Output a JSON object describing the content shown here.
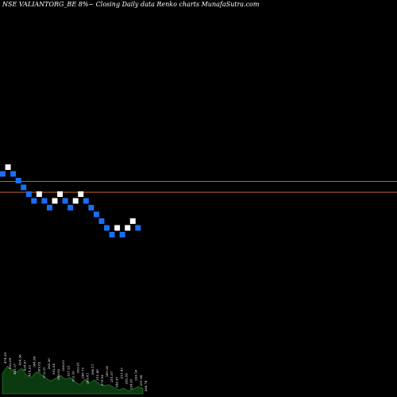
{
  "title": "NSE VALIANTORG_BE 8%~  Closing Daily data  Renko  charts MunafaSutra.com",
  "colors": {
    "background": "#000000",
    "brick_up": "#ffffff",
    "brick_down": "#1a6ef5",
    "hline": "#c0622a",
    "volume_fill": "#0c3a10",
    "volume_stroke": "#1f7a22",
    "label_text": "#ffffff"
  },
  "chart_data": {
    "type": "renko",
    "box_size_note": "8%",
    "bricks": [
      {
        "level": 0,
        "dir": "down"
      },
      {
        "level": 1,
        "dir": "up"
      },
      {
        "level": 0,
        "dir": "down"
      },
      {
        "level": -1,
        "dir": "down"
      },
      {
        "level": -2,
        "dir": "down"
      },
      {
        "level": -3,
        "dir": "down"
      },
      {
        "level": -4,
        "dir": "down"
      },
      {
        "level": -3,
        "dir": "up"
      },
      {
        "level": -4,
        "dir": "down"
      },
      {
        "level": -5,
        "dir": "down"
      },
      {
        "level": -4,
        "dir": "up"
      },
      {
        "level": -3,
        "dir": "up"
      },
      {
        "level": -4,
        "dir": "down"
      },
      {
        "level": -5,
        "dir": "down"
      },
      {
        "level": -4,
        "dir": "up"
      },
      {
        "level": -3,
        "dir": "up"
      },
      {
        "level": -4,
        "dir": "down"
      },
      {
        "level": -5,
        "dir": "down"
      },
      {
        "level": -6,
        "dir": "down"
      },
      {
        "level": -7,
        "dir": "down"
      },
      {
        "level": -8,
        "dir": "down"
      },
      {
        "level": -9,
        "dir": "down"
      },
      {
        "level": -8,
        "dir": "up"
      },
      {
        "level": -9,
        "dir": "down"
      },
      {
        "level": -8,
        "dir": "up"
      },
      {
        "level": -7,
        "dir": "up"
      },
      {
        "level": -8,
        "dir": "down"
      }
    ],
    "hlines": [
      0,
      -1.6
    ],
    "volume": [
      22,
      30,
      26,
      24,
      28,
      20,
      18,
      24,
      21,
      17,
      14,
      17,
      20,
      16,
      18,
      13,
      10,
      16,
      12,
      15,
      11,
      9,
      10,
      7,
      4,
      6,
      3,
      5,
      8,
      6
    ],
    "price_labels": [
      "474.39",
      "452.69",
      "451.57",
      "434.56",
      "424.67",
      "414.23",
      "384.99",
      "395.82",
      "373.31",
      "365.36",
      "352.54",
      "349.02",
      "338.61",
      "327.23",
      "312.16",
      "303.91",
      "298.73",
      "285.41",
      "296.11",
      "312.48",
      "274.56",
      "265.20",
      "251.87",
      "246.67",
      "251.43",
      "262.36",
      "234.81",
      "226.16",
      "251.94",
      "268.74"
    ]
  }
}
